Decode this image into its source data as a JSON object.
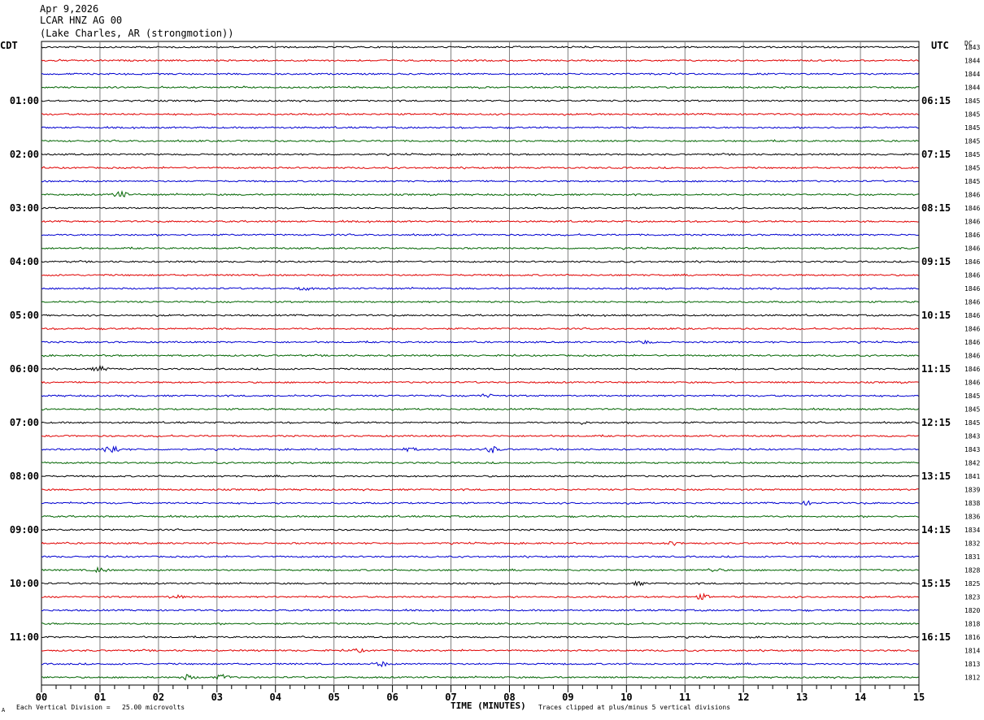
{
  "header": {
    "date": "Apr 9,2026",
    "station": "LCAR HNZ AG 00",
    "location": "(Lake Charles, AR (strongmotion))"
  },
  "labels": {
    "left_zone": "CDT",
    "right_zone": "UTC",
    "dc": "DC"
  },
  "footer": {
    "scale": "Each Vertical Division =   25.00 microvolts",
    "clip": "Traces clipped at plus/minus 5 vertical divisions",
    "xlabel": "TIME (MINUTES)",
    "mark": "A"
  },
  "colors": {
    "trace_cycle": [
      "#000000",
      "#e00000",
      "#0000d0",
      "#006400"
    ],
    "grid": "#808080"
  },
  "chart_data": {
    "type": "line",
    "subtype": "helicorder",
    "xlabel": "TIME (MINUTES)",
    "x_ticks": [
      "00",
      "01",
      "02",
      "03",
      "04",
      "05",
      "06",
      "07",
      "08",
      "09",
      "10",
      "11",
      "12",
      "13",
      "14",
      "15"
    ],
    "xlim": [
      0,
      15
    ],
    "minutes_per_trace": 15,
    "num_traces": 48,
    "left_time_labels": [
      "01:00",
      "02:00",
      "03:00",
      "04:00",
      "05:00",
      "06:00",
      "07:00",
      "08:00",
      "09:00",
      "10:00",
      "11:00"
    ],
    "right_time_labels": [
      "06:15",
      "07:15",
      "08:15",
      "09:15",
      "10:15",
      "11:15",
      "12:15",
      "13:15",
      "14:15",
      "15:15",
      "16:15"
    ],
    "dc_offsets": [
      1843,
      1844,
      1844,
      1844,
      1845,
      1845,
      1845,
      1845,
      1845,
      1845,
      1845,
      1846,
      1846,
      1846,
      1846,
      1846,
      1846,
      1846,
      1846,
      1846,
      1846,
      1846,
      1846,
      1846,
      1846,
      1846,
      1845,
      1845,
      1845,
      1843,
      1843,
      1842,
      1841,
      1839,
      1838,
      1836,
      1834,
      1832,
      1831,
      1828,
      1825,
      1823,
      1820,
      1818,
      1816,
      1814,
      1813,
      1812
    ],
    "events": [
      {
        "trace": 11,
        "minute": 1.35,
        "amplitude": 4
      },
      {
        "trace": 18,
        "minute": 4.5,
        "amplitude": 2
      },
      {
        "trace": 22,
        "minute": 10.3,
        "amplitude": 2
      },
      {
        "trace": 24,
        "minute": 1.0,
        "amplitude": 3
      },
      {
        "trace": 26,
        "minute": 7.6,
        "amplitude": 2
      },
      {
        "trace": 28,
        "minute": 9.2,
        "amplitude": 2
      },
      {
        "trace": 30,
        "minute": 1.2,
        "amplitude": 6
      },
      {
        "trace": 30,
        "minute": 7.7,
        "amplitude": 4
      },
      {
        "trace": 30,
        "minute": 6.3,
        "amplitude": 2
      },
      {
        "trace": 34,
        "minute": 13.1,
        "amplitude": 2
      },
      {
        "trace": 37,
        "minute": 10.8,
        "amplitude": 2
      },
      {
        "trace": 39,
        "minute": 1.0,
        "amplitude": 3
      },
      {
        "trace": 39,
        "minute": 11.5,
        "amplitude": 2
      },
      {
        "trace": 40,
        "minute": 10.2,
        "amplitude": 2
      },
      {
        "trace": 41,
        "minute": 11.3,
        "amplitude": 3
      },
      {
        "trace": 41,
        "minute": 2.3,
        "amplitude": 2
      },
      {
        "trace": 45,
        "minute": 5.4,
        "amplitude": 2
      },
      {
        "trace": 46,
        "minute": 5.8,
        "amplitude": 3
      },
      {
        "trace": 47,
        "minute": 2.5,
        "amplitude": 3
      },
      {
        "trace": 47,
        "minute": 3.1,
        "amplitude": 3
      }
    ]
  }
}
